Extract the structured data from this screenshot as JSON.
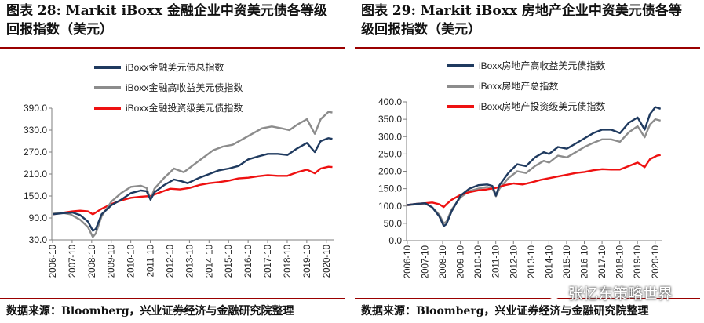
{
  "left": {
    "title": "图表 28:  Markit iBoxx 金融企业中资美元债各等级回报指数（美元）",
    "source": "数据来源：Bloomberg，兴业证券经济与金融研究院整理"
  },
  "right": {
    "title": "图表 29:  Markit iBoxx 房地产企业中资美元债各等级回报指数（美元）",
    "source": "数据来源：Bloomberg，兴业证券经济与金融研究院整理"
  },
  "watermark": {
    "text": "张忆东策略世界"
  },
  "chart_data": [
    {
      "type": "line",
      "x_labels": [
        "2006-10",
        "2007-10",
        "2008-10",
        "2009-10",
        "2010-10",
        "2011-10",
        "2012-10",
        "2013-10",
        "2014-10",
        "2015-10",
        "2016-10",
        "2017-10",
        "2018-10",
        "2019-10",
        "2020-10"
      ],
      "ylim": [
        30,
        390
      ],
      "yticks": [
        "30.0",
        "90.0",
        "150.0",
        "210.0",
        "270.0",
        "330.0",
        "390.0"
      ],
      "legend_position": "top-left",
      "grid": false,
      "series": [
        {
          "name": "iBoxx金融美元债总指数",
          "color": "#1f3a5f",
          "points": [
            [
              2006.8,
              100
            ],
            [
              2007.3,
              103
            ],
            [
              2007.8,
              105
            ],
            [
              2008.2,
              98
            ],
            [
              2008.6,
              80
            ],
            [
              2008.85,
              55
            ],
            [
              2009.0,
              60
            ],
            [
              2009.3,
              100
            ],
            [
              2009.8,
              125
            ],
            [
              2010.3,
              140
            ],
            [
              2010.8,
              158
            ],
            [
              2011.3,
              165
            ],
            [
              2011.6,
              163
            ],
            [
              2011.8,
              140
            ],
            [
              2012.0,
              160
            ],
            [
              2012.5,
              180
            ],
            [
              2013.0,
              195
            ],
            [
              2013.4,
              190
            ],
            [
              2013.7,
              185
            ],
            [
              2014.3,
              200
            ],
            [
              2014.8,
              210
            ],
            [
              2015.3,
              220
            ],
            [
              2015.8,
              225
            ],
            [
              2016.3,
              232
            ],
            [
              2016.8,
              250
            ],
            [
              2017.3,
              258
            ],
            [
              2017.8,
              265
            ],
            [
              2018.3,
              265
            ],
            [
              2018.8,
              262
            ],
            [
              2019.3,
              280
            ],
            [
              2019.8,
              295
            ],
            [
              2020.2,
              270
            ],
            [
              2020.5,
              300
            ],
            [
              2020.9,
              308
            ],
            [
              2021.1,
              306
            ]
          ]
        },
        {
          "name": "iBoxx金融高收益美元债指数",
          "color": "#8c8c8c",
          "points": [
            [
              2006.8,
              102
            ],
            [
              2007.3,
              104
            ],
            [
              2007.7,
              100
            ],
            [
              2008.2,
              85
            ],
            [
              2008.6,
              65
            ],
            [
              2008.85,
              38
            ],
            [
              2009.0,
              48
            ],
            [
              2009.3,
              95
            ],
            [
              2009.8,
              135
            ],
            [
              2010.3,
              158
            ],
            [
              2010.8,
              175
            ],
            [
              2011.3,
              178
            ],
            [
              2011.6,
              172
            ],
            [
              2011.8,
              140
            ],
            [
              2012.0,
              170
            ],
            [
              2012.5,
              200
            ],
            [
              2013.0,
              225
            ],
            [
              2013.5,
              215
            ],
            [
              2014.0,
              235
            ],
            [
              2014.5,
              255
            ],
            [
              2015.0,
              275
            ],
            [
              2015.5,
              285
            ],
            [
              2016.0,
              290
            ],
            [
              2016.5,
              305
            ],
            [
              2017.0,
              320
            ],
            [
              2017.5,
              335
            ],
            [
              2018.0,
              340
            ],
            [
              2018.5,
              335
            ],
            [
              2018.9,
              330
            ],
            [
              2019.3,
              345
            ],
            [
              2019.8,
              360
            ],
            [
              2020.2,
              320
            ],
            [
              2020.5,
              360
            ],
            [
              2020.9,
              380
            ],
            [
              2021.1,
              378
            ]
          ]
        },
        {
          "name": "iBoxx金融投资级美元债指数",
          "color": "#ee1111",
          "points": [
            [
              2006.8,
              100
            ],
            [
              2007.3,
              104
            ],
            [
              2007.8,
              108
            ],
            [
              2008.2,
              110
            ],
            [
              2008.6,
              108
            ],
            [
              2008.85,
              100
            ],
            [
              2009.0,
              105
            ],
            [
              2009.3,
              115
            ],
            [
              2009.8,
              128
            ],
            [
              2010.3,
              138
            ],
            [
              2010.8,
              145
            ],
            [
              2011.3,
              148
            ],
            [
              2011.8,
              150
            ],
            [
              2012.3,
              160
            ],
            [
              2012.8,
              170
            ],
            [
              2013.3,
              168
            ],
            [
              2013.8,
              172
            ],
            [
              2014.3,
              180
            ],
            [
              2014.8,
              185
            ],
            [
              2015.3,
              188
            ],
            [
              2015.8,
              192
            ],
            [
              2016.3,
              198
            ],
            [
              2016.8,
              200
            ],
            [
              2017.3,
              204
            ],
            [
              2017.8,
              207
            ],
            [
              2018.3,
              205
            ],
            [
              2018.8,
              205
            ],
            [
              2019.3,
              215
            ],
            [
              2019.8,
              222
            ],
            [
              2020.2,
              212
            ],
            [
              2020.5,
              225
            ],
            [
              2020.9,
              230
            ],
            [
              2021.1,
              229
            ]
          ]
        }
      ]
    },
    {
      "type": "line",
      "x_labels": [
        "2006-10",
        "2007-10",
        "2008-10",
        "2009-10",
        "2010-10",
        "2011-10",
        "2012-10",
        "2013-10",
        "2014-10",
        "2015-10",
        "2016-10",
        "2017-10",
        "2018-10",
        "2019-10",
        "2020-10"
      ],
      "ylim": [
        0,
        400
      ],
      "yticks": [
        "0.0",
        "50.0",
        "100.0",
        "150.0",
        "200.0",
        "250.0",
        "300.0",
        "350.0",
        "400.0"
      ],
      "legend_position": "top-left",
      "grid": false,
      "series": [
        {
          "name": "iBoxx房地产高收益美元债指数",
          "color": "#1f3a5f",
          "points": [
            [
              2006.8,
              103
            ],
            [
              2007.3,
              106
            ],
            [
              2007.8,
              108
            ],
            [
              2008.2,
              96
            ],
            [
              2008.6,
              70
            ],
            [
              2008.85,
              42
            ],
            [
              2009.0,
              48
            ],
            [
              2009.3,
              85
            ],
            [
              2009.8,
              130
            ],
            [
              2010.3,
              150
            ],
            [
              2010.8,
              160
            ],
            [
              2011.3,
              162
            ],
            [
              2011.6,
              158
            ],
            [
              2011.8,
              130
            ],
            [
              2012.0,
              160
            ],
            [
              2012.5,
              195
            ],
            [
              2013.0,
              220
            ],
            [
              2013.5,
              215
            ],
            [
              2014.0,
              240
            ],
            [
              2014.5,
              255
            ],
            [
              2014.8,
              250
            ],
            [
              2015.3,
              270
            ],
            [
              2015.8,
              265
            ],
            [
              2016.3,
              280
            ],
            [
              2016.8,
              295
            ],
            [
              2017.3,
              310
            ],
            [
              2017.8,
              320
            ],
            [
              2018.3,
              320
            ],
            [
              2018.8,
              310
            ],
            [
              2019.3,
              340
            ],
            [
              2019.8,
              355
            ],
            [
              2020.2,
              320
            ],
            [
              2020.5,
              365
            ],
            [
              2020.8,
              385
            ],
            [
              2021.1,
              380
            ]
          ]
        },
        {
          "name": "iBoxx房地产总指数",
          "color": "#8c8c8c",
          "points": [
            [
              2006.8,
              102
            ],
            [
              2007.3,
              105
            ],
            [
              2007.8,
              107
            ],
            [
              2008.2,
              96
            ],
            [
              2008.6,
              75
            ],
            [
              2008.85,
              50
            ],
            [
              2009.0,
              55
            ],
            [
              2009.3,
              90
            ],
            [
              2009.8,
              125
            ],
            [
              2010.3,
              143
            ],
            [
              2010.8,
              150
            ],
            [
              2011.3,
              155
            ],
            [
              2011.6,
              150
            ],
            [
              2011.8,
              128
            ],
            [
              2012.0,
              150
            ],
            [
              2012.5,
              180
            ],
            [
              2013.0,
              200
            ],
            [
              2013.5,
              195
            ],
            [
              2014.0,
              215
            ],
            [
              2014.5,
              230
            ],
            [
              2014.8,
              225
            ],
            [
              2015.3,
              245
            ],
            [
              2015.8,
              240
            ],
            [
              2016.3,
              255
            ],
            [
              2016.8,
              270
            ],
            [
              2017.3,
              282
            ],
            [
              2017.8,
              292
            ],
            [
              2018.3,
              292
            ],
            [
              2018.8,
              285
            ],
            [
              2019.3,
              312
            ],
            [
              2019.8,
              330
            ],
            [
              2020.2,
              298
            ],
            [
              2020.5,
              335
            ],
            [
              2020.8,
              350
            ],
            [
              2021.1,
              346
            ]
          ]
        },
        {
          "name": "iBoxx房地产投资级美元债指数",
          "color": "#ee1111",
          "points": [
            [
              2006.8,
              103
            ],
            [
              2007.3,
              106
            ],
            [
              2007.8,
              108
            ],
            [
              2008.2,
              110
            ],
            [
              2008.6,
              105
            ],
            [
              2008.85,
              97
            ],
            [
              2009.0,
              105
            ],
            [
              2009.3,
              118
            ],
            [
              2009.8,
              132
            ],
            [
              2010.3,
              140
            ],
            [
              2010.8,
              145
            ],
            [
              2011.3,
              148
            ],
            [
              2011.8,
              152
            ],
            [
              2012.3,
              160
            ],
            [
              2012.8,
              165
            ],
            [
              2013.3,
              162
            ],
            [
              2013.8,
              168
            ],
            [
              2014.3,
              175
            ],
            [
              2014.8,
              180
            ],
            [
              2015.3,
              185
            ],
            [
              2015.8,
              190
            ],
            [
              2016.3,
              195
            ],
            [
              2016.8,
              198
            ],
            [
              2017.3,
              203
            ],
            [
              2017.8,
              206
            ],
            [
              2018.3,
              205
            ],
            [
              2018.8,
              205
            ],
            [
              2019.3,
              215
            ],
            [
              2019.8,
              225
            ],
            [
              2020.2,
              212
            ],
            [
              2020.5,
              235
            ],
            [
              2020.9,
              245
            ],
            [
              2021.1,
              247
            ]
          ]
        }
      ]
    }
  ]
}
